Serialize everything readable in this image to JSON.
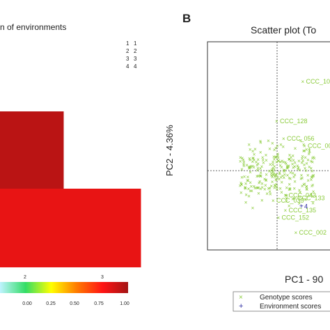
{
  "chart_data": [
    {
      "type": "heatmap",
      "title": "n of environments",
      "key_rows": [
        {
          "a": "1",
          "b": "1"
        },
        {
          "a": "2",
          "b": "2"
        },
        {
          "a": "3",
          "b": "3"
        },
        {
          "a": "4",
          "b": "4"
        }
      ],
      "x_ticks": [
        "2",
        "3"
      ],
      "cells": [
        {
          "x_from": 1.5,
          "x_to": 2.5,
          "row": "upper",
          "value": 0.95
        },
        {
          "x_from": 1.5,
          "x_to": 3.5,
          "row": "lower",
          "value": 0.85
        }
      ],
      "colorbar": {
        "ticks": [
          "0.00",
          "0.25",
          "0.50",
          "0.75",
          "1.00"
        ],
        "stops": [
          "#bff3ff",
          "#33dd66",
          "#ffff00",
          "#ff7a00",
          "#ff1414",
          "#a31414"
        ]
      }
    },
    {
      "type": "scatter",
      "panel_label": "B",
      "title": "Scatter plot (To",
      "xlabel": "PC1 - 90",
      "ylabel": "PC2 - 4.36%",
      "xlim": [
        -4,
        4
      ],
      "ylim": [
        -1.6,
        2.6
      ],
      "series": [
        {
          "name": "Genotype scores",
          "color": "#8acb3a",
          "marker": "x",
          "points": [
            {
              "x": 1.5,
              "y": 1.8,
              "label": "CCC_101"
            },
            {
              "x": 0.0,
              "y": 1.0,
              "label": "CCC_128"
            },
            {
              "x": 0.4,
              "y": 0.65,
              "label": "CCC_056"
            },
            {
              "x": 1.6,
              "y": 0.5,
              "label": "CCC_004"
            },
            {
              "x": 1.6,
              "y": 0.4,
              "label": "1"
            },
            {
              "x": 0.5,
              "y": -0.5,
              "label": "CCC_043"
            },
            {
              "x": -0.2,
              "y": -0.6,
              "label": "CCC_035"
            },
            {
              "x": 0.5,
              "y": -0.8,
              "label": "CCC_135"
            },
            {
              "x": 0.1,
              "y": -0.95,
              "label": "CCC_152"
            },
            {
              "x": 1.1,
              "y": -1.25,
              "label": "CCC_002"
            },
            {
              "x": 1.0,
              "y": -0.55,
              "label": "CCC_133"
            }
          ]
        },
        {
          "name": "Environment scores",
          "color": "#2a2aa0",
          "marker": "+",
          "points": [
            {
              "x": 1.4,
              "y": -0.72,
              "label": "4"
            }
          ]
        }
      ],
      "legend": {
        "position": "bottom-right",
        "entries": [
          {
            "symbol": "×",
            "label": "Genotype scores",
            "color": "#8acb3a"
          },
          {
            "symbol": "+",
            "label": "Environment scores",
            "color": "#2a2aa0"
          }
        ]
      }
    }
  ]
}
